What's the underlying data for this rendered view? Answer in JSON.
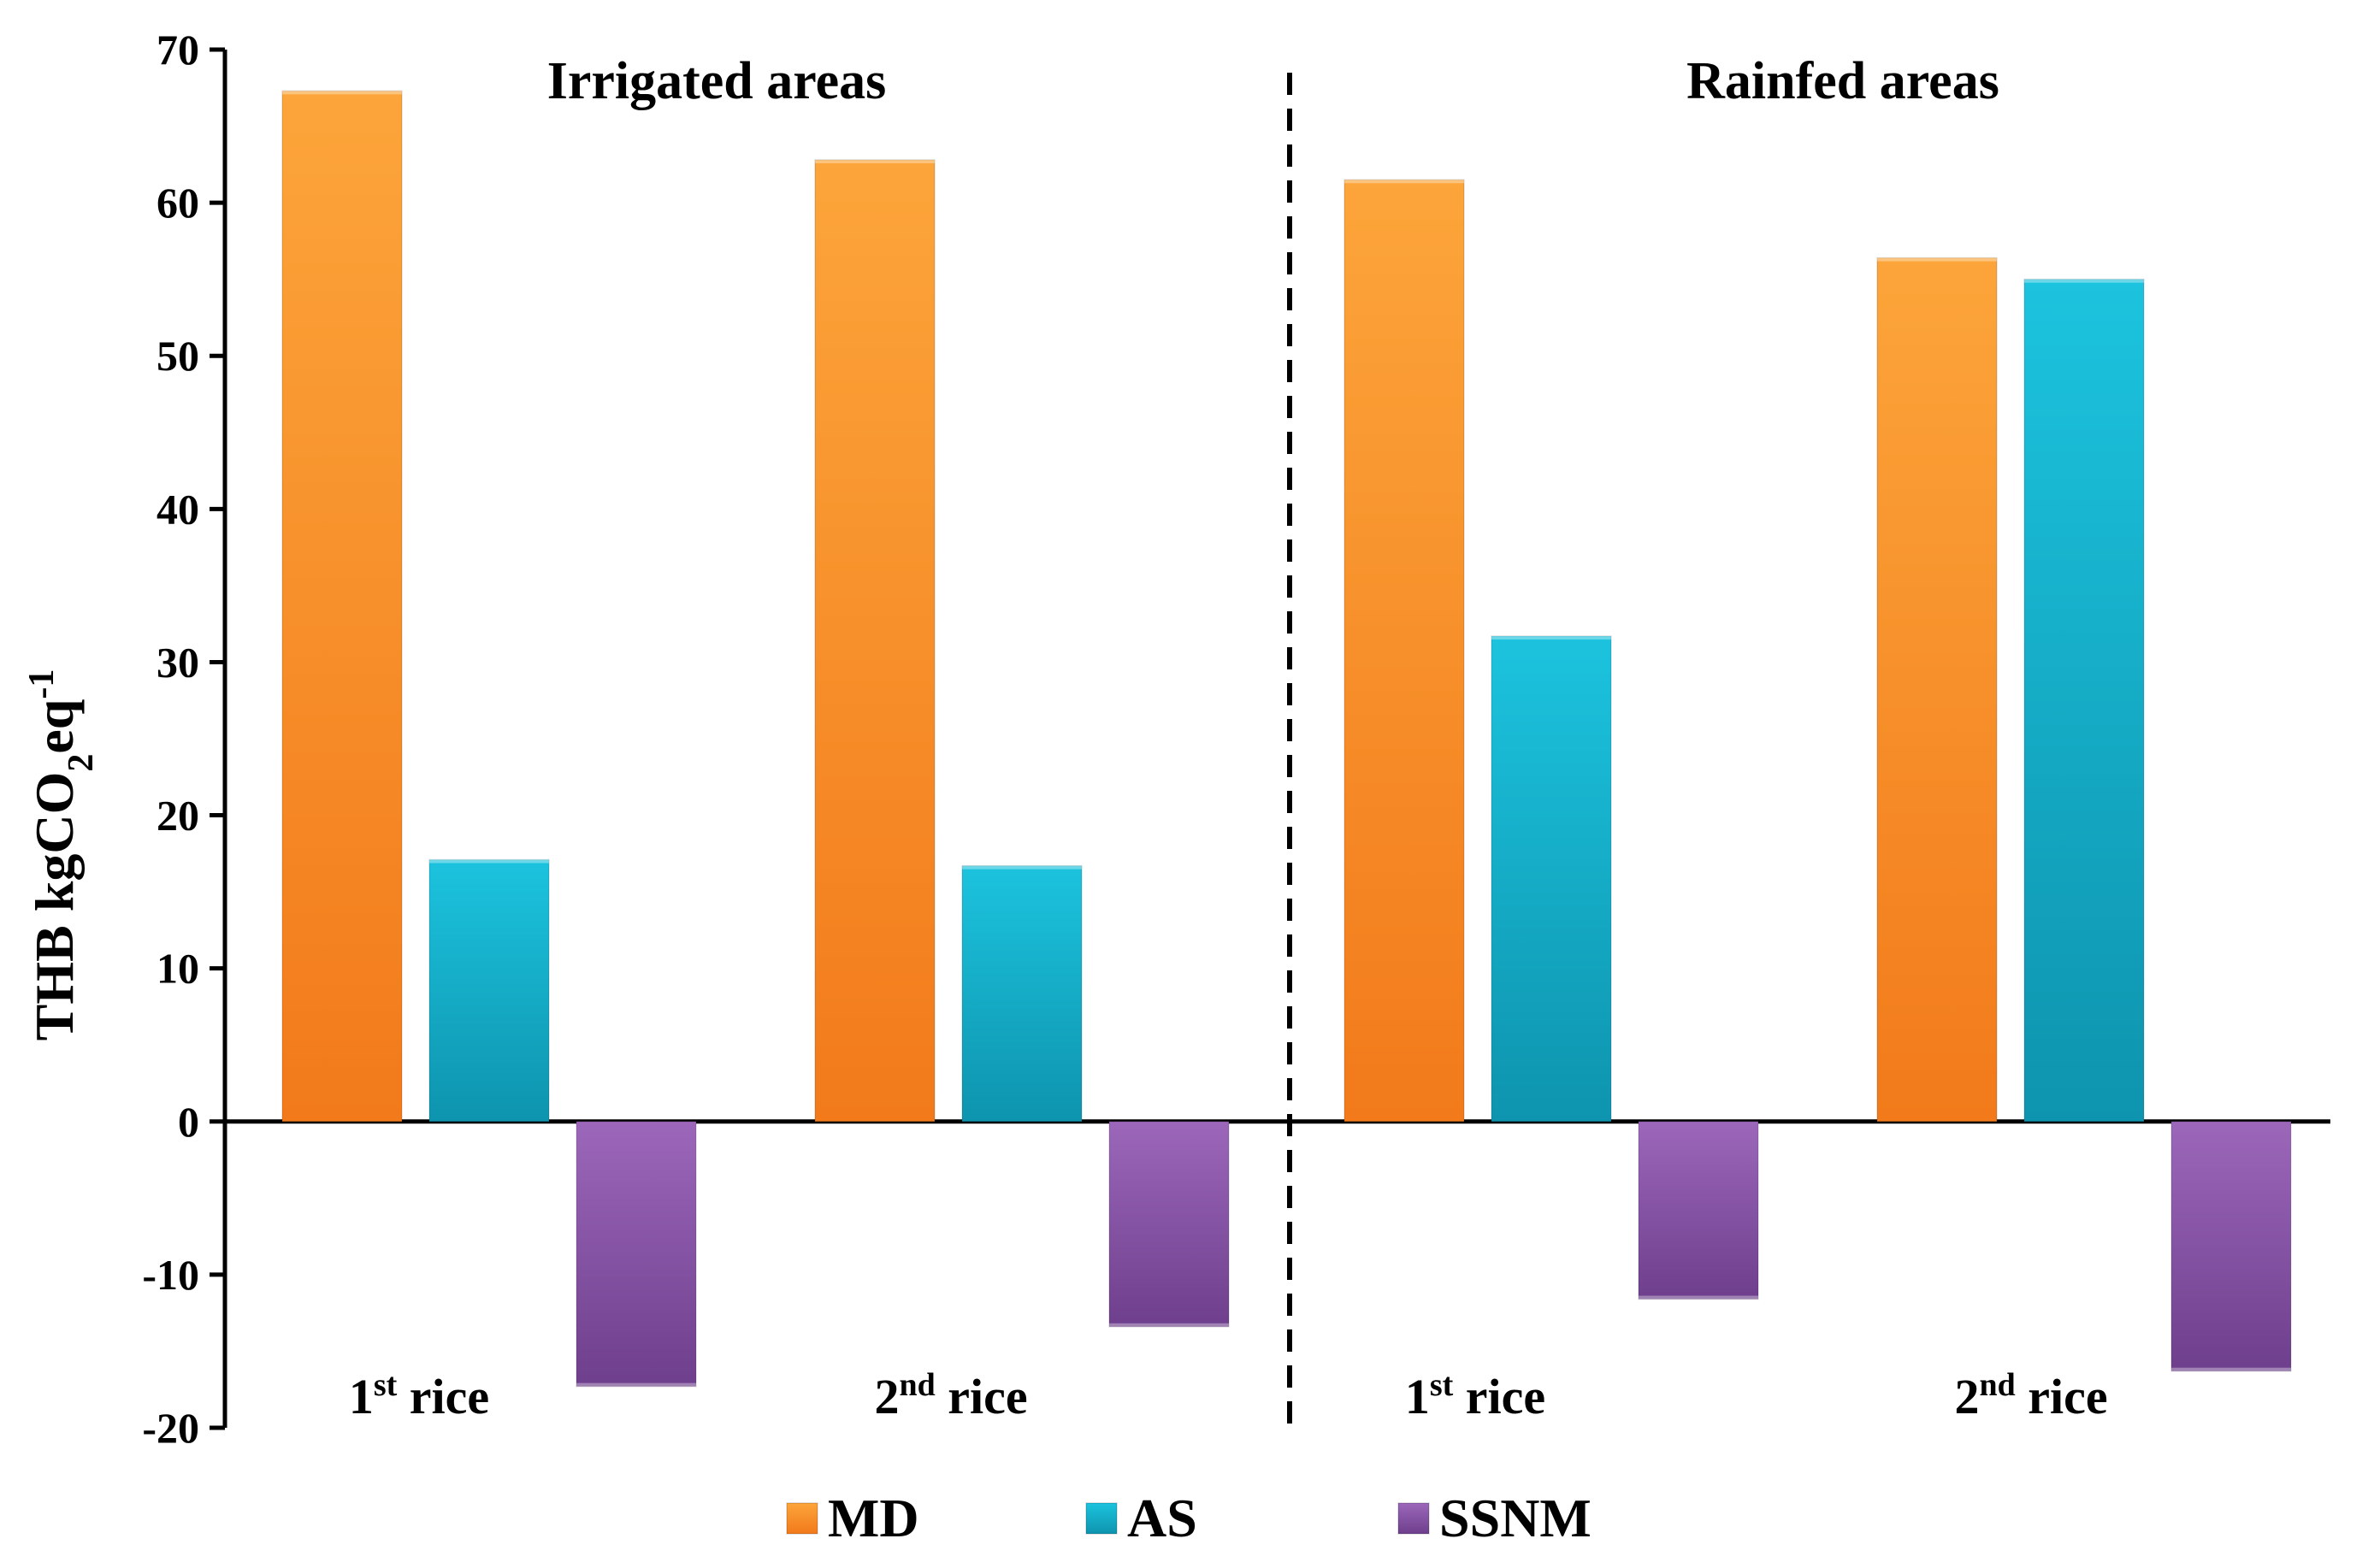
{
  "chart_data": {
    "type": "bar",
    "ylabel": {
      "main": "THB kgCO",
      "sub": "2",
      "mid": "eq",
      "sup": "-1"
    },
    "ylim": [
      -20,
      70
    ],
    "yticks": [
      70,
      60,
      50,
      40,
      30,
      20,
      10,
      0,
      -10,
      -20
    ],
    "regions": [
      {
        "label": "Irrigated areas"
      },
      {
        "label": "Rainfed areas"
      }
    ],
    "groups": [
      {
        "region": 0,
        "label_num": "1",
        "label_sup": "st",
        "label_rest": " rice"
      },
      {
        "region": 0,
        "label_num": "2",
        "label_sup": "nd",
        "label_rest": " rice"
      },
      {
        "region": 1,
        "label_num": "1",
        "label_sup": "st",
        "label_rest": " rice"
      },
      {
        "region": 1,
        "label_num": "2",
        "label_sup": "nd",
        "label_rest": " rice"
      }
    ],
    "series": [
      {
        "name": "MD",
        "color": "#F7891F",
        "values": [
          67.3,
          62.8,
          61.5,
          56.4
        ]
      },
      {
        "name": "AS",
        "color": "#12B5CF",
        "values": [
          17.1,
          16.7,
          31.7,
          55.0
        ]
      },
      {
        "name": "SSNM",
        "color": "#8A56A8",
        "values": [
          -17.3,
          -13.4,
          -11.6,
          -16.3
        ]
      }
    ]
  }
}
